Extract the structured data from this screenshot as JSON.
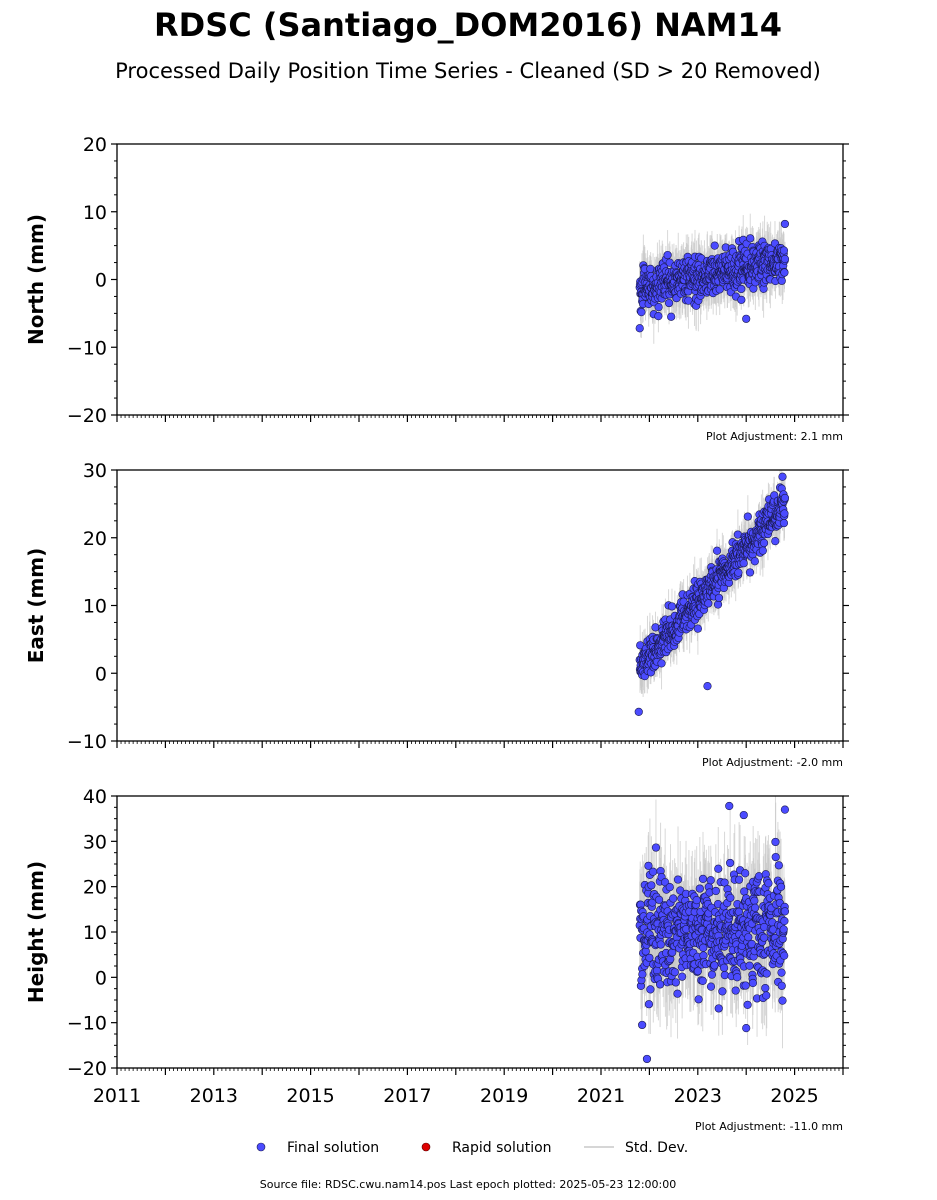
{
  "title": "RDSC (Santiago_DOM2016) NAM14",
  "subtitle": "Processed Daily Position Time Series - Cleaned (SD > 20 Removed)",
  "footer": "Source file: RDSC.cwu.nam14.pos  Last epoch plotted: 2025-05-23 12:00:00",
  "legend": {
    "final": "Final solution",
    "rapid": "Rapid solution",
    "std": "Std. Dev."
  },
  "colors": {
    "final_fill": "#4b4bff",
    "final_edge": "#1a1a4d",
    "rapid": "#dd0000",
    "std": "#c8c8c8"
  },
  "chart_data": {
    "type": "scatter",
    "x_range": [
      2011,
      2026
    ],
    "x_ticks": [
      "2011",
      "2013",
      "2015",
      "2017",
      "2019",
      "2021",
      "2023",
      "2025"
    ],
    "grid": false,
    "legend_position": "bottom-center",
    "data_span": [
      "2021-10",
      "2024-10"
    ],
    "panels": [
      {
        "key": "north",
        "ylabel": "North (mm)",
        "ylim": [
          -20,
          20
        ],
        "yticks": [
          "20",
          "10",
          "0",
          "−10",
          "−20"
        ],
        "adjustment": "Plot Adjustment: 2.1 mm",
        "trend": {
          "x": [
            2021.8,
            2024.8
          ],
          "y": [
            -1.5,
            3.0
          ]
        },
        "scatter_sd": 1.5,
        "errorbar": 3.5,
        "outliers": [
          [
            2021.8,
            -7.2
          ],
          [
            2022.45,
            -5.5
          ],
          [
            2024.0,
            -5.8
          ],
          [
            2023.9,
            -3.0
          ],
          [
            2024.8,
            8.2
          ],
          [
            2023.35,
            5.0
          ]
        ]
      },
      {
        "key": "east",
        "ylabel": "East (mm)",
        "ylim": [
          -10,
          30
        ],
        "yticks": [
          "30",
          "20",
          "10",
          "0",
          "−10"
        ],
        "adjustment": "Plot Adjustment: -2.0 mm",
        "trend": {
          "x": [
            2021.8,
            2024.8
          ],
          "y": [
            1.0,
            25.0
          ]
        },
        "scatter_sd": 1.3,
        "errorbar": 3.0,
        "outliers": [
          [
            2021.78,
            -5.7
          ],
          [
            2023.2,
            -1.9
          ],
          [
            2024.75,
            29.0
          ],
          [
            2024.6,
            19.5
          ]
        ]
      },
      {
        "key": "height",
        "ylabel": "Height (mm)",
        "ylim": [
          -20,
          40
        ],
        "yticks": [
          "40",
          "30",
          "20",
          "10",
          "0",
          "−10",
          "−20"
        ],
        "adjustment": "Plot Adjustment: -11.0 mm",
        "trend": {
          "x": [
            2021.8,
            2024.8
          ],
          "y": [
            10.0,
            11.0
          ]
        },
        "scatter_sd": 6.5,
        "errorbar": 10.0,
        "outliers": [
          [
            2021.95,
            -18.0
          ],
          [
            2023.65,
            37.8
          ],
          [
            2023.95,
            35.8
          ],
          [
            2024.8,
            37.0
          ],
          [
            2024.0,
            -11.2
          ],
          [
            2021.85,
            -10.5
          ]
        ]
      }
    ]
  }
}
